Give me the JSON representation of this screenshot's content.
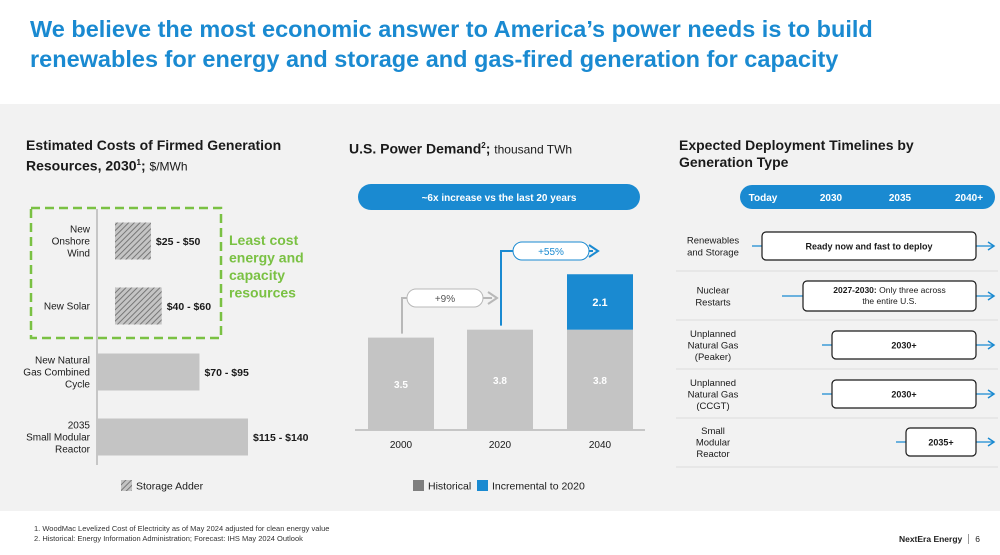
{
  "title": "We believe the most economic answer to America’s power needs is to build renewables for energy and storage and gas-fired generation for capacity",
  "colors": {
    "brand_blue": "#1a8ad1",
    "green": "#7ac143",
    "bar_gray": "#c4c4c4",
    "historical_gray": "#7f7f7f"
  },
  "left": {
    "title_main": "Estimated Costs of Firmed Generation Resources, 2030",
    "title_sup": "1",
    "title_sep": ";",
    "unit": "$/MWh",
    "highlight": "Least cost energy and capacity resources",
    "legend": "Storage Adder"
  },
  "middle": {
    "title_main": "U.S. Power Demand",
    "title_sup": "2",
    "title_sep": ";",
    "unit": "thousand TWh",
    "banner": "~6x increase vs the last 20 years",
    "growth_labels": [
      "+9%",
      "+55%"
    ],
    "legend": [
      "Historical",
      "Incremental to 2020"
    ]
  },
  "right": {
    "title": "Expected Deployment Timelines by Generation Type",
    "header": [
      "Today",
      "2030",
      "2035",
      "2040+"
    ],
    "rows": [
      {
        "label": "Renewables and Storage",
        "box_bold": "Ready now and fast to deploy",
        "box_rest": ""
      },
      {
        "label": "Nuclear Restarts",
        "box_bold": "2027-2030:",
        "box_rest": " Only three across the entire U.S."
      },
      {
        "label": "Unplanned Natural Gas (Peaker)",
        "box_bold": "2030+",
        "box_rest": ""
      },
      {
        "label": "Unplanned Natural Gas (CCGT)",
        "box_bold": "2030+",
        "box_rest": ""
      },
      {
        "label": "Small Modular Reactor",
        "box_bold": "2035+",
        "box_rest": ""
      }
    ]
  },
  "chart_data": [
    {
      "type": "bar",
      "orientation": "horizontal",
      "title": "Estimated Costs of Firmed Generation Resources, 2030",
      "unit": "$/MWh",
      "categories": [
        "New Onshore Wind",
        "New Solar",
        "New Natural Gas Combined Cycle",
        "2035 Small Modular Reactor"
      ],
      "value_labels": [
        "$25 - $50",
        "$40 - $60",
        "$70 - $95",
        "$115 - $140"
      ],
      "ranges": [
        [
          25,
          50
        ],
        [
          40,
          60
        ],
        [
          70,
          95
        ],
        [
          115,
          140
        ]
      ],
      "storage_adder": [
        true,
        true,
        false,
        false
      ]
    },
    {
      "type": "bar",
      "stacked": true,
      "title": "U.S. Power Demand",
      "unit": "thousand TWh",
      "categories": [
        "2000",
        "2020",
        "2040"
      ],
      "series": [
        {
          "name": "Historical",
          "values": [
            3.5,
            3.8,
            3.8
          ]
        },
        {
          "name": "Incremental to 2020",
          "values": [
            0,
            0,
            2.1
          ]
        }
      ]
    }
  ],
  "footnotes": [
    "1.  WoodMac Levelized Cost of Electricity as of May 2024 adjusted for clean energy value",
    "2.  Historical: Energy Information Administration; Forecast: IHS May 2024 Outlook"
  ],
  "footer": {
    "company": "NextEra Energy",
    "page": "6"
  }
}
